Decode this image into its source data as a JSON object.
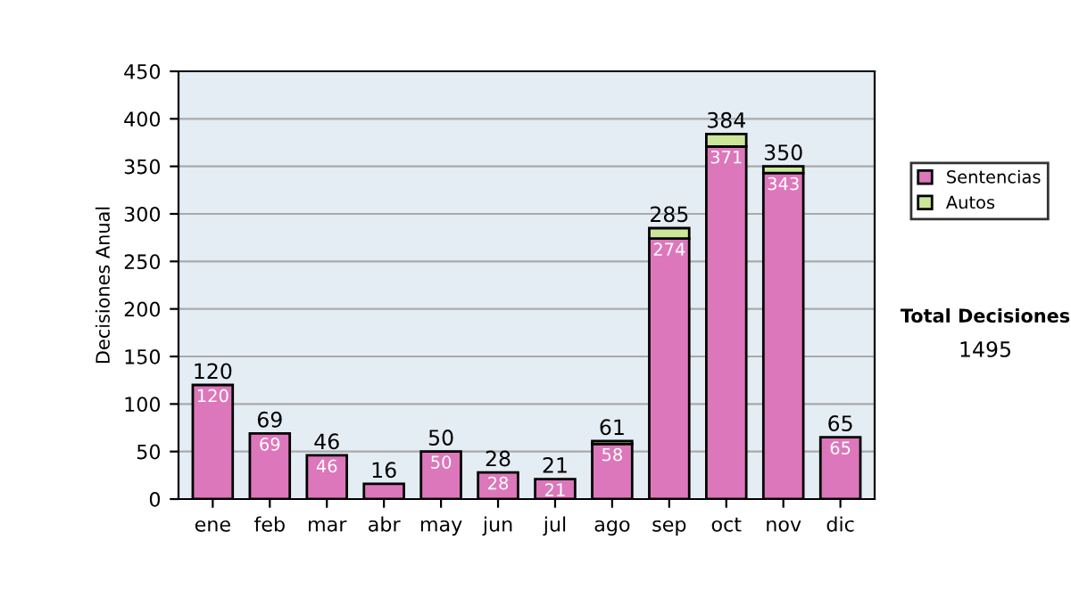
{
  "chart_data": {
    "type": "bar",
    "stacked": true,
    "ylabel": "Decisiones Anual",
    "categories": [
      "ene",
      "feb",
      "mar",
      "abr",
      "may",
      "jun",
      "jul",
      "ago",
      "sep",
      "oct",
      "nov",
      "dic"
    ],
    "series": [
      {
        "name": "Sentencias",
        "color": "#dd77bb",
        "values": [
          120,
          69,
          46,
          16,
          50,
          28,
          21,
          58,
          274,
          371,
          343,
          65
        ],
        "value_labels": [
          "120",
          "69",
          "46",
          null,
          "50",
          "28",
          "21",
          "58",
          "274",
          "371",
          "343",
          "65"
        ]
      },
      {
        "name": "Autos",
        "color": "#cce699",
        "values": [
          null,
          null,
          null,
          null,
          null,
          null,
          null,
          3,
          11,
          13,
          7,
          null
        ]
      }
    ],
    "totals": [
      "120",
      "69",
      "46",
      "16",
      "50",
      "28",
      "21",
      "61",
      "285",
      "384",
      "350",
      "65"
    ],
    "ylim": [
      0,
      450
    ],
    "yticks": [
      0,
      50,
      100,
      150,
      200,
      250,
      300,
      350,
      400,
      450
    ],
    "grid": "y",
    "legend": "right",
    "annotations": [
      "Total Decisiones",
      "1495"
    ]
  }
}
